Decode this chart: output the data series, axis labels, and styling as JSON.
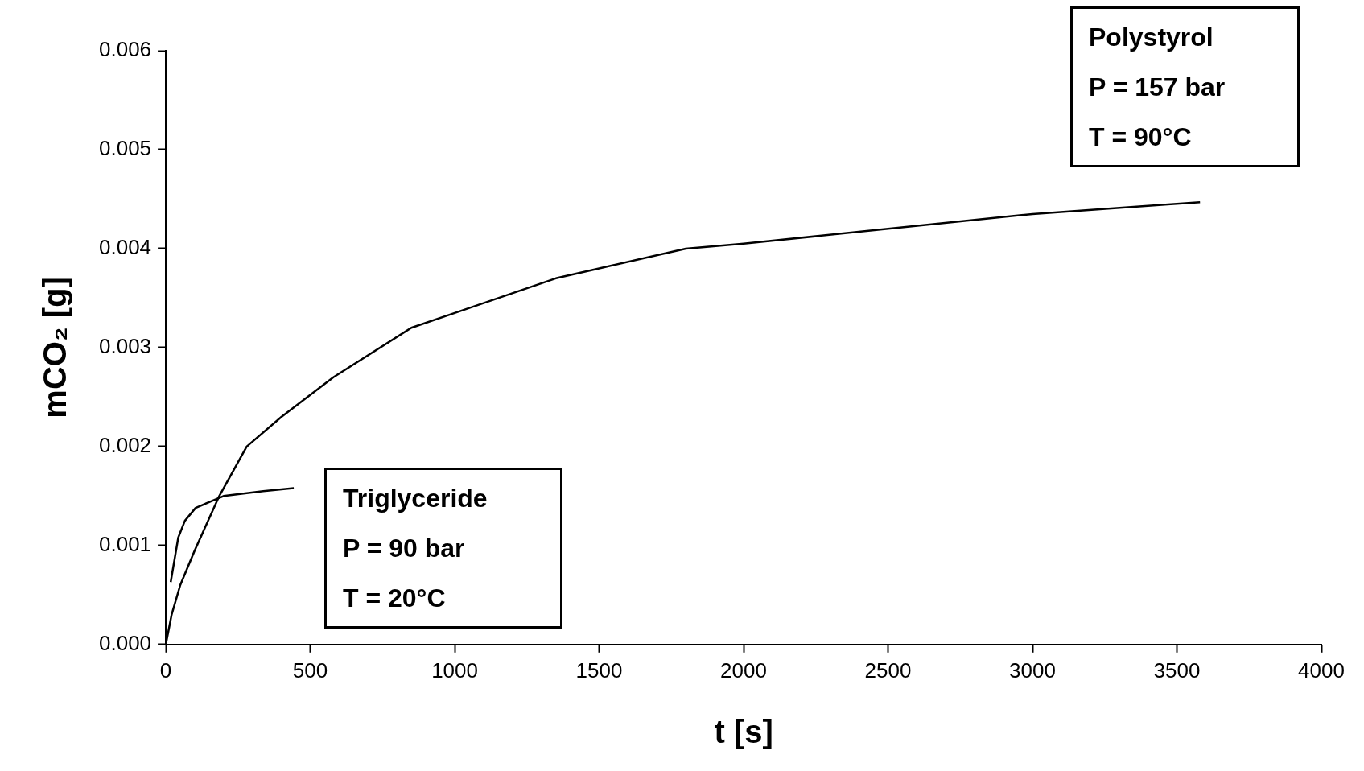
{
  "chart_data": {
    "type": "line",
    "xlabel": "t [s]",
    "ylabel": "mCO₂ [g]",
    "xlim": [
      0,
      4000
    ],
    "xticks": [
      0,
      500,
      1000,
      1500,
      2000,
      2500,
      3000,
      3500,
      4000
    ],
    "ylim": [
      0,
      0.006
    ],
    "yticks": [
      {
        "value": 0,
        "label": "0.000"
      },
      0.001,
      0.002,
      0.003,
      0.004,
      0.005,
      0.006
    ],
    "grid": false,
    "legend": false,
    "marker": "none",
    "line_style": "solid",
    "series": [
      {
        "color": "#000000",
        "x": [
          0,
          20,
          50,
          100,
          185,
          280,
          400,
          580,
          850,
          1000,
          1350,
          1500,
          1800,
          2000,
          2500,
          3000,
          3580
        ],
        "values": [
          0,
          0.0003,
          0.0006,
          0.00095,
          0.0015,
          0.002,
          0.0023,
          0.0027,
          0.0032,
          0.00335,
          0.0037,
          0.0038,
          0.004,
          0.00405,
          0.0042,
          0.00435,
          0.00447
        ]
      },
      {
        "color": "#000000",
        "x": [
          17,
          43,
          66,
          103,
          200,
          337,
          443
        ],
        "values": [
          0.00063,
          0.00108,
          0.00125,
          0.00138,
          0.0015,
          0.00155,
          0.00158
        ]
      }
    ],
    "annotations": [
      "Polystyrol\nP = 157 bar\nT = 90°C",
      "Triglyceride\nP = 90 bar\nT = 20°C"
    ]
  }
}
